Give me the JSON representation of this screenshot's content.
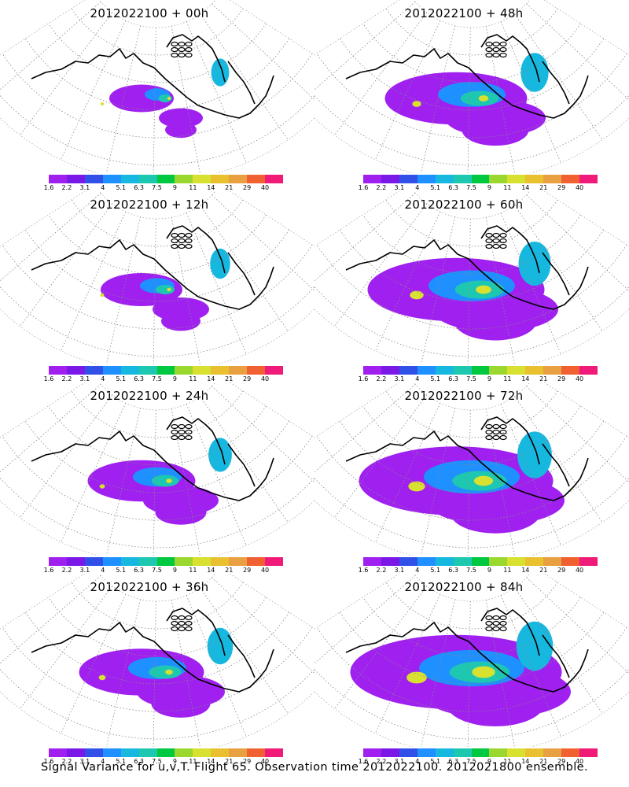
{
  "panels": [
    {
      "title": "2012022100 + 00h",
      "lead": "00h",
      "spread": 0.1
    },
    {
      "title": "2012022100 + 48h",
      "lead": "48h",
      "spread": 0.55
    },
    {
      "title": "2012022100 + 12h",
      "lead": "12h",
      "spread": 0.2
    },
    {
      "title": "2012022100 + 60h",
      "lead": "60h",
      "spread": 0.75
    },
    {
      "title": "2012022100 + 24h",
      "lead": "24h",
      "spread": 0.35
    },
    {
      "title": "2012022100 + 72h",
      "lead": "72h",
      "spread": 0.85
    },
    {
      "title": "2012022100 + 36h",
      "lead": "36h",
      "spread": 0.45
    },
    {
      "title": "2012022100 + 84h",
      "lead": "84h",
      "spread": 0.95
    }
  ],
  "colorbar": {
    "ticks": [
      "1.6",
      "2.2",
      "3.1",
      "4",
      "5.1",
      "6.3",
      "7.5",
      "9",
      "11",
      "14",
      "21",
      "29",
      "40"
    ],
    "colors": [
      "#a020f0",
      "#7a18e8",
      "#3050e8",
      "#1e90ff",
      "#17b8e0",
      "#1ec8b0",
      "#00c840",
      "#9ad830",
      "#d8e030",
      "#e8c030",
      "#e8a040",
      "#f06030",
      "#f01a78"
    ]
  },
  "footer": "Signal Variance for u,v,T. Flight 65. Observation time 2012022100. 2012021800 ensemble."
}
